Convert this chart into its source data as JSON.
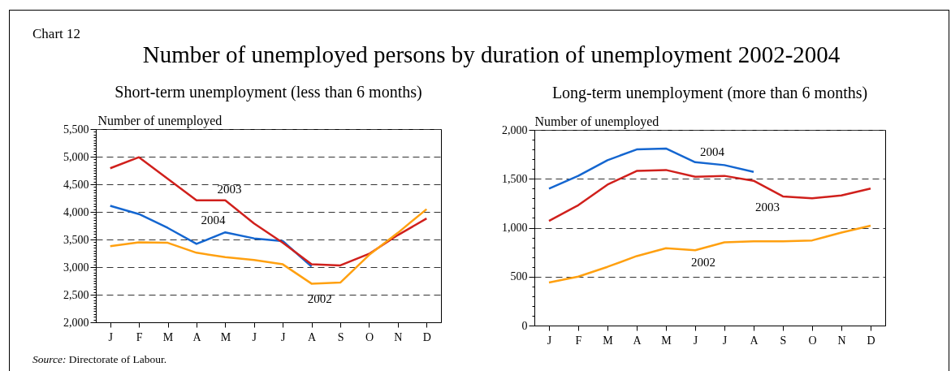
{
  "chart_data": [
    {
      "type": "line",
      "title": "Number of unemployed persons by duration of unemployment 2002-2004",
      "subtitle": "Short-term unemployment (less than 6 months)",
      "ylabel": "Number of unemployed",
      "annotations": [
        "Chart 12",
        "Source: Directorate of Labour."
      ],
      "categories": [
        "J",
        "F",
        "M",
        "A",
        "M",
        "J",
        "J",
        "A",
        "S",
        "O",
        "N",
        "D"
      ],
      "series": [
        {
          "name": "2004",
          "color": "#1466d0",
          "values": [
            4110,
            3960,
            3710,
            3420,
            3630,
            3520,
            3470,
            3010,
            null,
            null,
            null,
            null
          ]
        },
        {
          "name": "2003",
          "color": "#d0201c",
          "values": [
            4790,
            4990,
            4600,
            4210,
            4210,
            3790,
            3440,
            3050,
            3030,
            3240,
            3580,
            3880
          ]
        },
        {
          "name": "2002",
          "color": "#ffa010",
          "values": [
            3380,
            3450,
            3440,
            3260,
            3180,
            3130,
            3050,
            2700,
            2720,
            3220,
            3620,
            4050
          ]
        }
      ],
      "ylim": [
        2000,
        5500
      ],
      "yticks": [
        {
          "value": 2000,
          "label": "2,000"
        },
        {
          "value": 2050,
          "label": null
        },
        {
          "value": 2100,
          "label": null
        },
        {
          "value": 2150,
          "label": null
        },
        {
          "value": 2200,
          "label": null
        },
        {
          "value": 2250,
          "label": null
        },
        {
          "value": 2300,
          "label": null
        },
        {
          "value": 2350,
          "label": null
        },
        {
          "value": 2400,
          "label": null
        },
        {
          "value": 2450,
          "label": null
        },
        {
          "value": 2500,
          "label": "2,500"
        },
        {
          "value": 2550,
          "label": null
        },
        {
          "value": 2600,
          "label": null
        },
        {
          "value": 2650,
          "label": null
        },
        {
          "value": 2700,
          "label": null
        },
        {
          "value": 2750,
          "label": null
        },
        {
          "value": 2800,
          "label": null
        },
        {
          "value": 2850,
          "label": null
        },
        {
          "value": 2900,
          "label": null
        },
        {
          "value": 2950,
          "label": null
        },
        {
          "value": 3000,
          "label": "3,000"
        },
        {
          "value": 3050,
          "label": null
        },
        {
          "value": 3100,
          "label": null
        },
        {
          "value": 3150,
          "label": null
        },
        {
          "value": 3200,
          "label": null
        },
        {
          "value": 3250,
          "label": null
        },
        {
          "value": 3300,
          "label": null
        },
        {
          "value": 3350,
          "label": null
        },
        {
          "value": 3400,
          "label": null
        },
        {
          "value": 3450,
          "label": null
        },
        {
          "value": 3500,
          "label": "3,500"
        },
        {
          "value": 3550,
          "label": null
        },
        {
          "value": 3600,
          "label": null
        },
        {
          "value": 3650,
          "label": null
        },
        {
          "value": 3700,
          "label": null
        },
        {
          "value": 3750,
          "label": null
        },
        {
          "value": 3800,
          "label": null
        },
        {
          "value": 3850,
          "label": null
        },
        {
          "value": 3900,
          "label": null
        },
        {
          "value": 3950,
          "label": null
        },
        {
          "value": 4000,
          "label": "4,000"
        },
        {
          "value": 4050,
          "label": null
        },
        {
          "value": 4100,
          "label": null
        },
        {
          "value": 4150,
          "label": null
        },
        {
          "value": 4200,
          "label": null
        },
        {
          "value": 4250,
          "label": null
        },
        {
          "value": 4300,
          "label": null
        },
        {
          "value": 4350,
          "label": null
        },
        {
          "value": 4400,
          "label": null
        },
        {
          "value": 4450,
          "label": null
        },
        {
          "value": 4500,
          "label": "4,500"
        },
        {
          "value": 4550,
          "label": null
        },
        {
          "value": 4600,
          "label": null
        },
        {
          "value": 4650,
          "label": null
        },
        {
          "value": 4700,
          "label": null
        },
        {
          "value": 4750,
          "label": null
        },
        {
          "value": 4800,
          "label": null
        },
        {
          "value": 4850,
          "label": null
        },
        {
          "value": 4900,
          "label": null
        },
        {
          "value": 4950,
          "label": null
        },
        {
          "value": 5000,
          "label": "5,000"
        },
        {
          "value": 5050,
          "label": null
        },
        {
          "value": 5100,
          "label": null
        },
        {
          "value": 5150,
          "label": null
        },
        {
          "value": 5200,
          "label": null
        },
        {
          "value": 5250,
          "label": null
        },
        {
          "value": 5300,
          "label": null
        },
        {
          "value": 5350,
          "label": null
        },
        {
          "value": 5400,
          "label": null
        },
        {
          "value": 5450,
          "label": null
        },
        {
          "value": 5500,
          "label": "5,500"
        }
      ],
      "grid": "y"
    },
    {
      "type": "line",
      "title": "Long-term unemployment (more than 6 months)",
      "ylabel": "Number of unemployed",
      "categories": [
        "J",
        "F",
        "M",
        "A",
        "M",
        "J",
        "J",
        "A",
        "S",
        "O",
        "N",
        "D"
      ],
      "series": [
        {
          "name": "2004",
          "color": "#1466d0",
          "values": [
            1400,
            1530,
            1690,
            1800,
            1810,
            1670,
            1640,
            1570,
            null,
            null,
            null,
            null
          ]
        },
        {
          "name": "2003",
          "color": "#d0201c",
          "values": [
            1070,
            1230,
            1440,
            1580,
            1590,
            1520,
            1530,
            1480,
            1320,
            1300,
            1330,
            1400
          ]
        },
        {
          "name": "2002",
          "color": "#ffa010",
          "values": [
            440,
            500,
            600,
            710,
            790,
            770,
            850,
            860,
            860,
            870,
            950,
            1020
          ]
        }
      ],
      "ylim": [
        0,
        2000
      ],
      "yticks": [
        {
          "value": 0,
          "label": "0"
        },
        {
          "value": 100,
          "label": null
        },
        {
          "value": 200,
          "label": null
        },
        {
          "value": 300,
          "label": null
        },
        {
          "value": 400,
          "label": null
        },
        {
          "value": 500,
          "label": "500"
        },
        {
          "value": 600,
          "label": null
        },
        {
          "value": 700,
          "label": null
        },
        {
          "value": 800,
          "label": null
        },
        {
          "value": 900,
          "label": null
        },
        {
          "value": 1000,
          "label": "1,000"
        },
        {
          "value": 1100,
          "label": null
        },
        {
          "value": 1200,
          "label": null
        },
        {
          "value": 1300,
          "label": null
        },
        {
          "value": 1400,
          "label": null
        },
        {
          "value": 1500,
          "label": "1,500"
        },
        {
          "value": 1600,
          "label": null
        },
        {
          "value": 1700,
          "label": null
        },
        {
          "value": 1800,
          "label": null
        },
        {
          "value": 1900,
          "label": null
        },
        {
          "value": 2000,
          "label": "2,000"
        }
      ],
      "grid": "y"
    }
  ]
}
